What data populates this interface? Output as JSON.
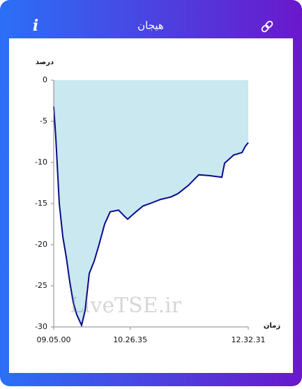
{
  "header": {
    "title": "هیجان",
    "info_icon": "i"
  },
  "chart_data": {
    "type": "line",
    "ylabel": "درصد",
    "xlabel": "زمان",
    "watermark": "LiveTSE.ir",
    "x": [
      32700,
      32834,
      33057,
      33280,
      33503,
      33726,
      33950,
      34173,
      34485,
      34708,
      34976,
      35289,
      35601,
      35958,
      36315,
      36851,
      37208,
      37431,
      37966,
      38413,
      38859,
      39528,
      40198,
      40644,
      41314,
      41983,
      42652,
      43456,
      43634,
      44214,
      44750,
      44973,
      45151
    ],
    "series": [
      {
        "color": "#0a0a8c",
        "fill": "#c9e8f0",
        "values": [
          -3.2,
          -7,
          -15,
          -19,
          -21.5,
          -24.5,
          -27,
          -28.5,
          -29.8,
          -28,
          -23.5,
          -22,
          -20,
          -17.5,
          -16,
          -15.8,
          -16.5,
          -16.9,
          -16,
          -15.3,
          -15,
          -14.5,
          -14.2,
          -13.8,
          -12.8,
          -11.5,
          -11.6,
          -11.8,
          -10.1,
          -9.1,
          -8.8,
          -8,
          -7.6
        ]
      }
    ],
    "xlim": [
      32700,
      45151
    ],
    "xticks": [
      {
        "value": 32700,
        "label": "09.05.00"
      },
      {
        "value": 37595,
        "label": "10.26.35"
      },
      {
        "value": 45151,
        "label": "12.32.31"
      }
    ],
    "ylim": [
      -30,
      0
    ],
    "yticks": [
      0,
      -5,
      -10,
      -15,
      -20,
      -25,
      -30
    ],
    "grid": false
  }
}
